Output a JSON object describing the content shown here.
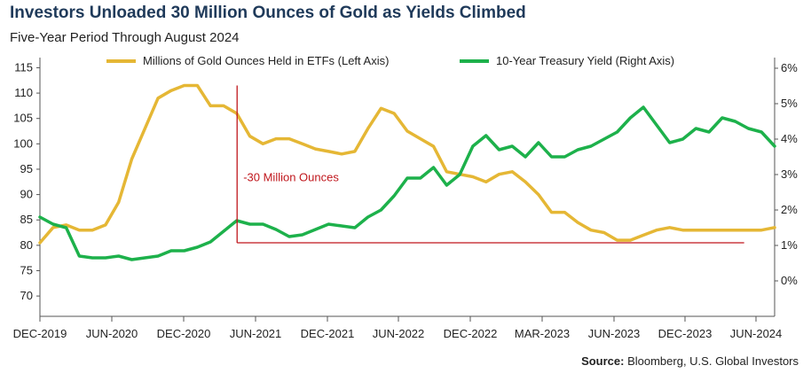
{
  "title": "Investors Unloaded 30 Million Ounces of Gold as Yields Climbed",
  "subtitle": "Five-Year Period Through August 2024",
  "source_label": "Source:",
  "source_text": " Bloomberg, U.S. Global Investors",
  "colors": {
    "gold": "#e5b735",
    "yield": "#1db14b",
    "annotation": "#c0161c",
    "axis": "#555555"
  },
  "chart_data": {
    "type": "line",
    "x_tick_labels": [
      "DEC-2019",
      "JUN-2020",
      "DEC-2020",
      "JUN-2021",
      "DEC-2021",
      "JUN-2022",
      "DEC-2022",
      "MAR-2023",
      "JUN-2023",
      "DEC-2023",
      "JUN-2024"
    ],
    "left_axis": {
      "ylim": [
        66,
        117
      ],
      "ticks": [
        70,
        75,
        80,
        85,
        90,
        95,
        100,
        105,
        110,
        115
      ]
    },
    "right_axis": {
      "ylim": [
        -1.0,
        6.3
      ],
      "ticks": [
        "0%",
        "1%",
        "2%",
        "3%",
        "4%",
        "5%",
        "6%"
      ],
      "tick_values": [
        0,
        1,
        2,
        3,
        4,
        5,
        6
      ]
    },
    "legend": {
      "placement": "top"
    },
    "series": [
      {
        "name": "Millions of Gold Ounces Held in ETFs (Left Axis)",
        "axis": "left",
        "x": [
          "2019-12",
          "2020-01",
          "2020-02",
          "2020-03",
          "2020-04",
          "2020-05",
          "2020-06",
          "2020-07",
          "2020-08",
          "2020-09",
          "2020-10",
          "2020-11",
          "2020-12",
          "2021-01",
          "2021-02",
          "2021-03",
          "2021-04",
          "2021-05",
          "2021-06",
          "2021-07",
          "2021-08",
          "2021-09",
          "2021-10",
          "2021-11",
          "2021-12",
          "2022-01",
          "2022-02",
          "2022-03",
          "2022-04",
          "2022-05",
          "2022-06",
          "2022-07",
          "2022-08",
          "2022-09",
          "2022-10",
          "2022-11",
          "2022-12",
          "2023-01",
          "2023-02",
          "2023-03",
          "2023-04",
          "2023-05",
          "2023-06",
          "2023-07",
          "2023-08",
          "2023-09",
          "2023-10",
          "2023-11",
          "2023-12",
          "2024-01",
          "2024-02",
          "2024-03",
          "2024-04",
          "2024-05",
          "2024-06",
          "2024-07",
          "2024-08"
        ],
        "values": [
          80.5,
          83.5,
          84.0,
          83.0,
          83.0,
          84.0,
          88.5,
          97.0,
          103.0,
          109.0,
          110.5,
          111.5,
          111.5,
          107.5,
          107.5,
          106.0,
          101.5,
          100.0,
          101.0,
          101.0,
          100.0,
          99.0,
          98.5,
          98.0,
          98.5,
          103.0,
          107.0,
          106.0,
          102.5,
          101.0,
          99.5,
          94.5,
          94.0,
          93.5,
          92.5,
          94.0,
          94.5,
          92.5,
          90.0,
          86.5,
          86.5,
          84.5,
          83.0,
          82.5,
          81.0,
          81.0,
          82.0,
          83.0,
          83.5,
          83.0,
          83.0,
          83.0,
          83.0,
          83.0,
          83.0,
          83.0,
          83.5
        ],
        "note": ""
      },
      {
        "name": "10-Year Treasury Yield (Right Axis)",
        "axis": "right",
        "x": [
          "2019-12",
          "2020-01",
          "2020-02",
          "2020-03",
          "2020-04",
          "2020-05",
          "2020-06",
          "2020-07",
          "2020-08",
          "2020-09",
          "2020-10",
          "2020-11",
          "2020-12",
          "2021-01",
          "2021-02",
          "2021-03",
          "2021-04",
          "2021-05",
          "2021-06",
          "2021-07",
          "2021-08",
          "2021-09",
          "2021-10",
          "2021-11",
          "2021-12",
          "2022-01",
          "2022-02",
          "2022-03",
          "2022-04",
          "2022-05",
          "2022-06",
          "2022-07",
          "2022-08",
          "2022-09",
          "2022-10",
          "2022-11",
          "2022-12",
          "2023-01",
          "2023-02",
          "2023-03",
          "2023-04",
          "2023-05",
          "2023-06",
          "2023-07",
          "2023-08",
          "2023-09",
          "2023-10",
          "2023-11",
          "2023-12",
          "2024-01",
          "2024-02",
          "2024-03",
          "2024-04",
          "2024-05",
          "2024-06",
          "2024-07",
          "2024-08"
        ],
        "values": [
          1.8,
          1.6,
          1.5,
          0.7,
          0.65,
          0.65,
          0.7,
          0.6,
          0.65,
          0.7,
          0.85,
          0.85,
          0.95,
          1.1,
          1.4,
          1.7,
          1.6,
          1.6,
          1.45,
          1.25,
          1.3,
          1.45,
          1.6,
          1.55,
          1.5,
          1.8,
          2.0,
          2.4,
          2.9,
          2.9,
          3.2,
          2.7,
          3.0,
          3.8,
          4.1,
          3.7,
          3.8,
          3.5,
          3.9,
          3.5,
          3.5,
          3.7,
          3.8,
          4.0,
          4.2,
          4.6,
          4.9,
          4.4,
          3.9,
          4.0,
          4.3,
          4.2,
          4.6,
          4.5,
          4.3,
          4.2,
          3.8
        ]
      }
    ],
    "annotation": {
      "label": "-30 Million Ounces",
      "from": [
        "2021-01",
        111.5
      ],
      "to": [
        "2024-05",
        80.5
      ]
    }
  }
}
